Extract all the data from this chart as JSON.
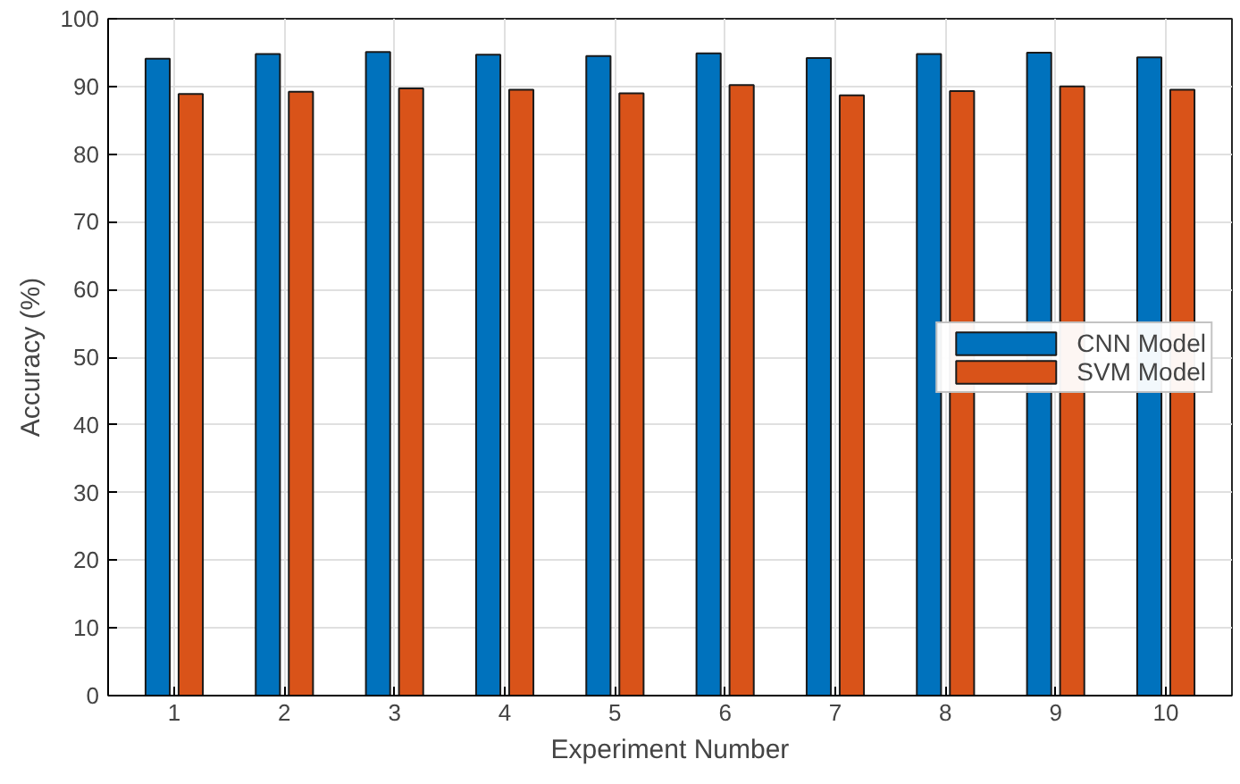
{
  "chart_data": {
    "type": "bar",
    "xlabel": "Experiment Number",
    "ylabel": "Accuracy (%)",
    "categories": [
      "1",
      "2",
      "3",
      "4",
      "5",
      "6",
      "7",
      "8",
      "9",
      "10"
    ],
    "series": [
      {
        "name": "CNN Model",
        "color": "#0072bd",
        "values": [
          94.1,
          94.8,
          95.1,
          94.7,
          94.5,
          94.9,
          94.2,
          94.8,
          95.0,
          94.3
        ]
      },
      {
        "name": "SVM Model",
        "color": "#d95319",
        "values": [
          88.9,
          89.2,
          89.7,
          89.5,
          89.0,
          90.2,
          88.7,
          89.3,
          90.0,
          89.5
        ]
      }
    ],
    "ylim": [
      0,
      100
    ],
    "yticks": [
      0,
      10,
      20,
      30,
      40,
      50,
      60,
      70,
      80,
      90,
      100
    ],
    "grid": true,
    "legend": "right"
  }
}
